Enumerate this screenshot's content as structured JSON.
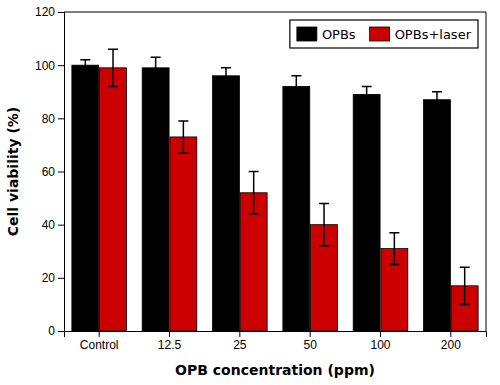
{
  "chart_data": {
    "type": "bar",
    "categories": [
      "Control",
      "12.5",
      "25",
      "50",
      "100",
      "200"
    ],
    "series": [
      {
        "name": "OPBs",
        "color": "#000000",
        "values": [
          100,
          99,
          96,
          92,
          89,
          87
        ],
        "errors": [
          2,
          4,
          3,
          4,
          3,
          3
        ]
      },
      {
        "name": "OPBs+laser",
        "color": "#cc0000",
        "values": [
          99,
          73,
          52,
          40,
          31,
          17
        ],
        "errors": [
          7,
          6,
          8,
          8,
          6,
          7
        ]
      }
    ],
    "xlabel": "OPB concentration (ppm)",
    "ylabel": "Cell viability (%)",
    "ylim": [
      0,
      120
    ],
    "yticks": [
      0,
      20,
      40,
      60,
      80,
      100,
      120
    ],
    "legend": "upper right",
    "grid": false
  }
}
